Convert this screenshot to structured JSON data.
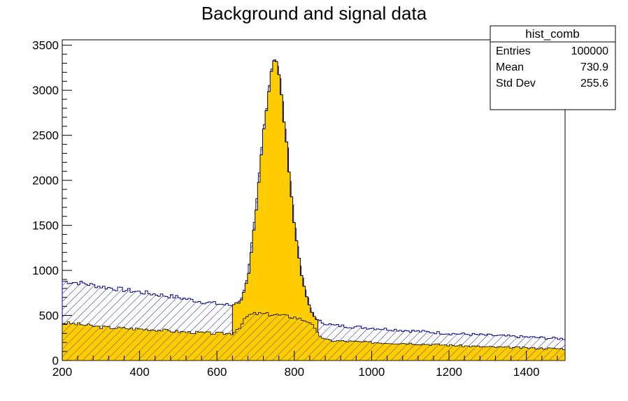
{
  "chart_data": {
    "type": "histogram",
    "title": "Background and signal data",
    "xlabel": "",
    "ylabel": "",
    "xlim": [
      200,
      1500
    ],
    "ylim": [
      0,
      3560
    ],
    "x_ticks": [
      200,
      400,
      600,
      800,
      1000,
      1200,
      1400
    ],
    "y_ticks": [
      0,
      500,
      1000,
      1500,
      2000,
      2500,
      3000,
      3500
    ],
    "bin_width": 6.5,
    "stats_box": {
      "title": "hist_comb",
      "rows": [
        {
          "label": "Entries",
          "value": "100000"
        },
        {
          "label": "Mean",
          "value": "730.9"
        },
        {
          "label": "Std Dev",
          "value": "255.6"
        }
      ]
    },
    "series": [
      {
        "role": "combined (background + signal)",
        "style": "hatched outline",
        "color": "#000099",
        "fill": "hatch",
        "points": [
          [
            200,
            880
          ],
          [
            250,
            860
          ],
          [
            300,
            820
          ],
          [
            350,
            790
          ],
          [
            400,
            760
          ],
          [
            450,
            730
          ],
          [
            500,
            700
          ],
          [
            550,
            660
          ],
          [
            600,
            630
          ],
          [
            640,
            610
          ],
          [
            660,
            650
          ],
          [
            680,
            900
          ],
          [
            700,
            1600
          ],
          [
            720,
            2500
          ],
          [
            740,
            3200
          ],
          [
            750,
            3380
          ],
          [
            760,
            3200
          ],
          [
            780,
            2400
          ],
          [
            800,
            1500
          ],
          [
            820,
            900
          ],
          [
            840,
            580
          ],
          [
            860,
            440
          ],
          [
            900,
            390
          ],
          [
            1000,
            360
          ],
          [
            1100,
            330
          ],
          [
            1200,
            300
          ],
          [
            1300,
            280
          ],
          [
            1400,
            260
          ],
          [
            1500,
            240
          ]
        ]
      },
      {
        "role": "background",
        "style": "hatched orange",
        "color": "#ffcc00",
        "fill": "hatch",
        "points": [
          [
            200,
            420
          ],
          [
            250,
            400
          ],
          [
            300,
            370
          ],
          [
            350,
            360
          ],
          [
            400,
            350
          ],
          [
            450,
            340
          ],
          [
            500,
            320
          ],
          [
            550,
            310
          ],
          [
            600,
            300
          ],
          [
            640,
            300
          ],
          [
            660,
            380
          ],
          [
            680,
            500
          ],
          [
            700,
            520
          ],
          [
            750,
            510
          ],
          [
            800,
            480
          ],
          [
            840,
            430
          ],
          [
            860,
            300
          ],
          [
            880,
            230
          ],
          [
            900,
            220
          ],
          [
            1000,
            200
          ],
          [
            1100,
            190
          ],
          [
            1200,
            170
          ],
          [
            1300,
            150
          ],
          [
            1400,
            140
          ],
          [
            1500,
            130
          ]
        ]
      },
      {
        "role": "signal peak",
        "style": "solid fill",
        "color": "#ffcc00",
        "peak_x": 750,
        "peak_y": 3380
      }
    ]
  }
}
